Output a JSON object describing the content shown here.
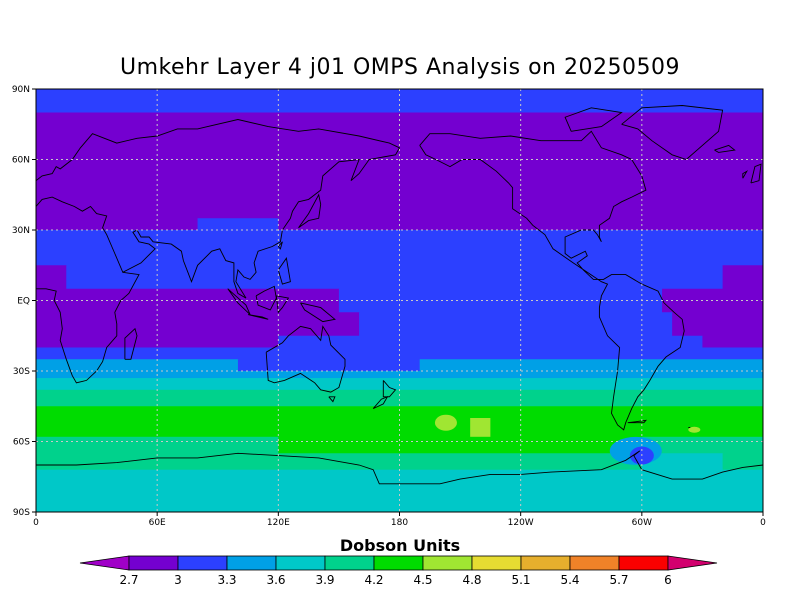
{
  "chart_data": {
    "type": "heatmap",
    "title": "Umkehr Layer 4 j01 OMPS Analysis on 20250509",
    "colorbar_title": "Dobson Units",
    "projection": "cylindrical equidistant",
    "grid": true,
    "lon_range": [
      0,
      360
    ],
    "lat_range": [
      -90,
      90
    ],
    "x_ticks": [
      {
        "lon": 0,
        "label": "0"
      },
      {
        "lon": 60,
        "label": "60E"
      },
      {
        "lon": 120,
        "label": "120E"
      },
      {
        "lon": 180,
        "label": "180"
      },
      {
        "lon": 240,
        "label": "120W"
      },
      {
        "lon": 300,
        "label": "60W"
      },
      {
        "lon": 360,
        "label": "0"
      }
    ],
    "y_ticks": [
      {
        "lat": 90,
        "label": "90N"
      },
      {
        "lat": 60,
        "label": "60N"
      },
      {
        "lat": 30,
        "label": "30N"
      },
      {
        "lat": 0,
        "label": "EQ"
      },
      {
        "lat": -30,
        "label": "30S"
      },
      {
        "lat": -60,
        "label": "60S"
      },
      {
        "lat": -90,
        "label": "90S"
      }
    ],
    "levels": [
      2.7,
      3,
      3.3,
      3.6,
      3.9,
      4.2,
      4.5,
      4.8,
      5.1,
      5.4,
      5.7,
      6
    ],
    "level_labels": [
      "2.7",
      "3",
      "3.3",
      "3.6",
      "3.9",
      "4.2",
      "4.5",
      "4.8",
      "5.1",
      "5.4",
      "5.7",
      "6"
    ],
    "colors": [
      "#a000c8",
      "#7400d0",
      "#2c40ff",
      "#00a0e6",
      "#00c8c8",
      "#00d28c",
      "#00dc00",
      "#a0e632",
      "#e6dc32",
      "#e6af2d",
      "#f08228",
      "#fa0000",
      "#d2006e"
    ],
    "fields": [
      {
        "lat": 90,
        "bands": [
          {
            "lon": 0,
            "value": 3.1
          }
        ]
      },
      {
        "lat": 82,
        "bands": [
          {
            "lon": 0,
            "value": 3.1
          }
        ]
      },
      {
        "lat": 80,
        "bands": [
          {
            "lon": 0,
            "value": 2.9
          }
        ]
      },
      {
        "lat": 60,
        "bands": [
          {
            "lon": 0,
            "value": 2.9
          }
        ]
      },
      {
        "lat": 40,
        "bands": [
          {
            "lon": 0,
            "value": 2.9
          }
        ]
      },
      {
        "lat": 35,
        "bands": [
          {
            "lon": 0,
            "value": 2.9
          },
          {
            "lon": 80,
            "value": 3.1
          },
          {
            "lon": 120,
            "value": 2.9
          },
          {
            "lon": 240,
            "value": 2.9
          }
        ]
      },
      {
        "lat": 30,
        "bands": [
          {
            "lon": 0,
            "value": 3.1
          }
        ]
      },
      {
        "lat": 20,
        "bands": [
          {
            "lon": 0,
            "value": 3.1
          }
        ]
      },
      {
        "lat": 15,
        "bands": [
          {
            "lon": 0,
            "value": 2.9
          },
          {
            "lon": 15,
            "value": 3.1
          },
          {
            "lon": 340,
            "value": 2.9
          }
        ]
      },
      {
        "lat": 5,
        "bands": [
          {
            "lon": 0,
            "value": 2.9
          },
          {
            "lon": 150,
            "value": 3.1
          },
          {
            "lon": 310,
            "value": 2.9
          }
        ]
      },
      {
        "lat": -5,
        "bands": [
          {
            "lon": 0,
            "value": 2.9
          },
          {
            "lon": 160,
            "value": 3.1
          },
          {
            "lon": 315,
            "value": 2.9
          }
        ]
      },
      {
        "lat": -15,
        "bands": [
          {
            "lon": 0,
            "value": 2.9
          },
          {
            "lon": 120,
            "value": 3.1
          },
          {
            "lon": 330,
            "value": 2.9
          }
        ]
      },
      {
        "lat": -20,
        "bands": [
          {
            "lon": 0,
            "value": 3.1
          }
        ]
      },
      {
        "lat": -25,
        "bands": [
          {
            "lon": 0,
            "value": 3.4
          },
          {
            "lon": 100,
            "value": 3.1
          },
          {
            "lon": 190,
            "value": 3.4
          }
        ]
      },
      {
        "lat": -30,
        "bands": [
          {
            "lon": 0,
            "value": 3.4
          }
        ]
      },
      {
        "lat": -33,
        "bands": [
          {
            "lon": 0,
            "value": 3.7
          }
        ]
      },
      {
        "lat": -38,
        "bands": [
          {
            "lon": 0,
            "value": 4.0
          }
        ]
      },
      {
        "lat": -45,
        "bands": [
          {
            "lon": 0,
            "value": 4.3
          }
        ]
      },
      {
        "lat": -50,
        "bands": [
          {
            "lon": 0,
            "value": 4.3
          },
          {
            "lon": 215,
            "value": 4.6
          },
          {
            "lon": 225,
            "value": 4.3
          }
        ]
      },
      {
        "lat": -58,
        "bands": [
          {
            "lon": 0,
            "value": 4.0
          },
          {
            "lon": 120,
            "value": 4.3
          },
          {
            "lon": 300,
            "value": 4.0
          }
        ]
      },
      {
        "lat": -65,
        "bands": [
          {
            "lon": 0,
            "value": 4.0
          },
          {
            "lon": 300,
            "value": 3.7
          },
          {
            "lon": 340,
            "value": 4.0
          }
        ]
      },
      {
        "lat": -72,
        "bands": [
          {
            "lon": 0,
            "value": 3.7
          },
          {
            "lon": 290,
            "value": 3.7
          }
        ]
      },
      {
        "lat": -80,
        "bands": [
          {
            "lon": 0,
            "value": 3.7
          }
        ]
      },
      {
        "lat": -90,
        "bands": [
          {
            "lon": 0,
            "value": 3.7
          }
        ]
      }
    ]
  }
}
